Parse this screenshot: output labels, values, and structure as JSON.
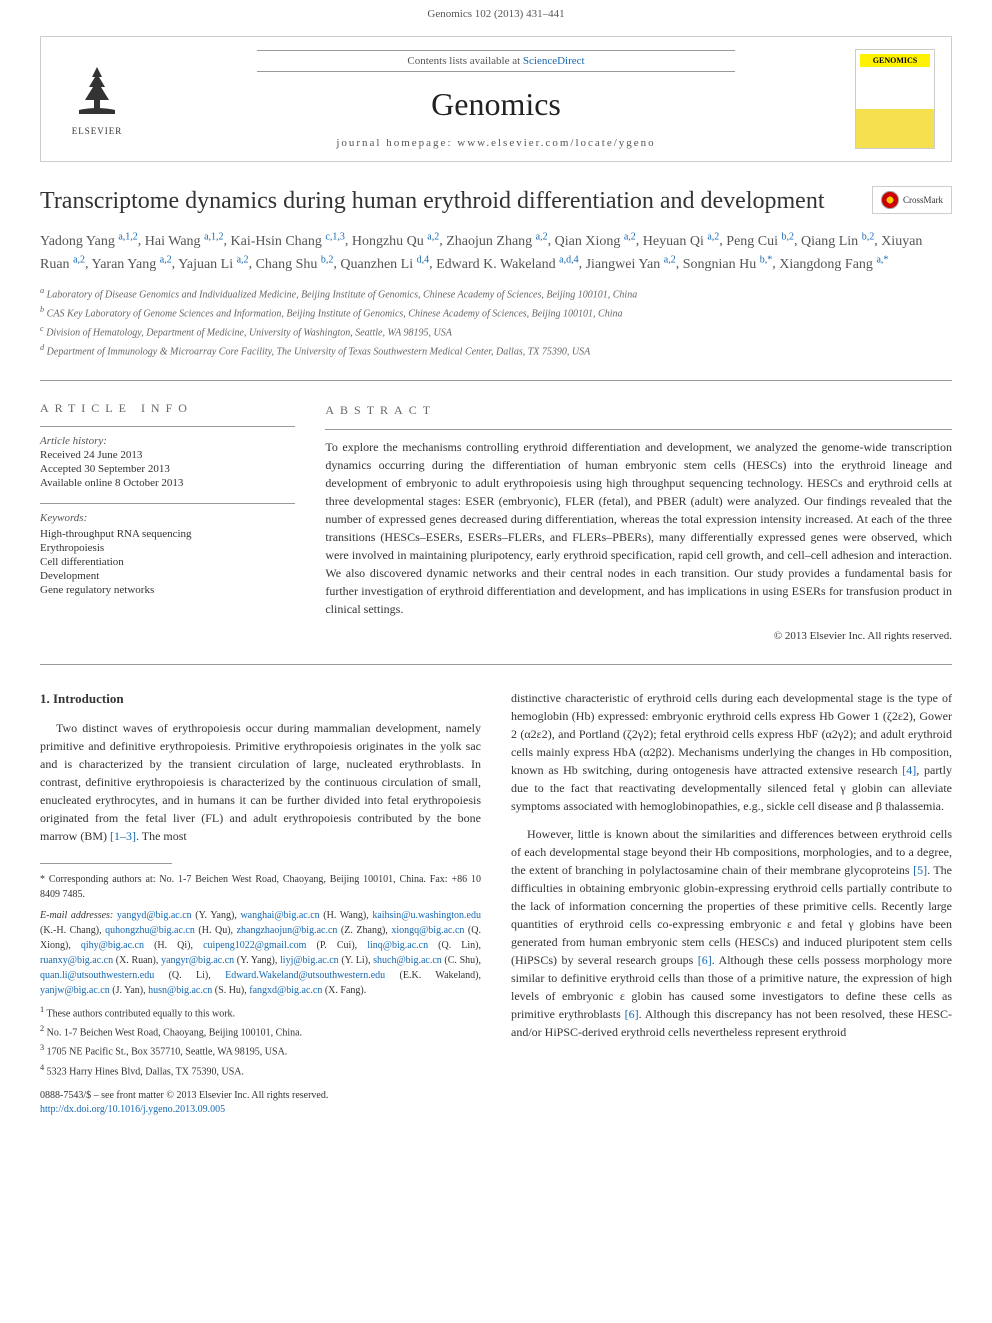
{
  "header": {
    "citation": "Genomics 102 (2013) 431–441"
  },
  "journalBox": {
    "contentsLabel": "Contents lists available at ",
    "contentsLink": "ScienceDirect",
    "journalName": "Genomics",
    "homepageLabel": "journal homepage: ",
    "homepage": "www.elsevier.com/locate/ygeno",
    "publisher": "ELSEVIER",
    "coverTitle": "GENOMICS"
  },
  "crossmark": "CrossMark",
  "title": "Transcriptome dynamics during human erythroid differentiation and development",
  "authors": [
    {
      "name": "Yadong Yang",
      "sup": "a,1,2"
    },
    {
      "name": "Hai Wang",
      "sup": "a,1,2"
    },
    {
      "name": "Kai-Hsin Chang",
      "sup": "c,1,3"
    },
    {
      "name": "Hongzhu Qu",
      "sup": "a,2"
    },
    {
      "name": "Zhaojun Zhang",
      "sup": "a,2"
    },
    {
      "name": "Qian Xiong",
      "sup": "a,2"
    },
    {
      "name": "Heyuan Qi",
      "sup": "a,2"
    },
    {
      "name": "Peng Cui",
      "sup": "b,2"
    },
    {
      "name": "Qiang Lin",
      "sup": "b,2"
    },
    {
      "name": "Xiuyan Ruan",
      "sup": "a,2"
    },
    {
      "name": "Yaran Yang",
      "sup": "a,2"
    },
    {
      "name": "Yajuan Li",
      "sup": "a,2"
    },
    {
      "name": "Chang Shu",
      "sup": "b,2"
    },
    {
      "name": "Quanzhen Li",
      "sup": "d,4"
    },
    {
      "name": "Edward K. Wakeland",
      "sup": "a,d,4"
    },
    {
      "name": "Jiangwei Yan",
      "sup": "a,2"
    },
    {
      "name": "Songnian Hu",
      "sup": "b,*"
    },
    {
      "name": "Xiangdong Fang",
      "sup": "a,*"
    }
  ],
  "affiliations": [
    {
      "label": "a",
      "text": "Laboratory of Disease Genomics and Individualized Medicine, Beijing Institute of Genomics, Chinese Academy of Sciences, Beijing 100101, China"
    },
    {
      "label": "b",
      "text": "CAS Key Laboratory of Genome Sciences and Information, Beijing Institute of Genomics, Chinese Academy of Sciences, Beijing 100101, China"
    },
    {
      "label": "c",
      "text": "Division of Hematology, Department of Medicine, University of Washington, Seattle, WA 98195, USA"
    },
    {
      "label": "d",
      "text": "Department of Immunology & Microarray Core Facility, The University of Texas Southwestern Medical Center, Dallas, TX 75390, USA"
    }
  ],
  "articleInfo": {
    "label": "ARTICLE INFO",
    "historyLabel": "Article history:",
    "history": [
      "Received 24 June 2013",
      "Accepted 30 September 2013",
      "Available online 8 October 2013"
    ],
    "keywordsLabel": "Keywords:",
    "keywords": [
      "High-throughput RNA sequencing",
      "Erythropoiesis",
      "Cell differentiation",
      "Development",
      "Gene regulatory networks"
    ]
  },
  "abstract": {
    "label": "ABSTRACT",
    "text": "To explore the mechanisms controlling erythroid differentiation and development, we analyzed the genome-wide transcription dynamics occurring during the differentiation of human embryonic stem cells (HESCs) into the erythroid lineage and development of embryonic to adult erythropoiesis using high throughput sequencing technology. HESCs and erythroid cells at three developmental stages: ESER (embryonic), FLER (fetal), and PBER (adult) were analyzed. Our findings revealed that the number of expressed genes decreased during differentiation, whereas the total expression intensity increased. At each of the three transitions (HESCs–ESERs, ESERs–FLERs, and FLERs–PBERs), many differentially expressed genes were observed, which were involved in maintaining pluripotency, early erythroid specification, rapid cell growth, and cell–cell adhesion and interaction. We also discovered dynamic networks and their central nodes in each transition. Our study provides a fundamental basis for further investigation of erythroid differentiation and development, and has implications in using ESERs for transfusion product in clinical settings.",
    "copyright": "© 2013 Elsevier Inc. All rights reserved."
  },
  "intro": {
    "heading": "1. Introduction",
    "p1": "Two distinct waves of erythropoiesis occur during mammalian development, namely primitive and definitive erythropoiesis. Primitive erythropoiesis originates in the yolk sac and is characterized by the transient circulation of large, nucleated erythroblasts. In contrast, definitive erythropoiesis is characterized by the continuous circulation of small, enucleated erythrocytes, and in humans it can be further divided into fetal erythropoiesis originated from the fetal liver (FL) and adult erythropoiesis contributed by the bone marrow (BM) ",
    "p1ref": "[1–3]",
    "p1tail": ". The most",
    "p2a": "distinctive characteristic of erythroid cells during each developmental stage is the type of hemoglobin (Hb) expressed: embryonic erythroid cells express Hb Gower 1 (ζ2ε2), Gower 2 (α2ε2), and Portland (ζ2γ2); fetal erythroid cells express HbF (α2γ2); and adult erythroid cells mainly express HbA (α2β2). Mechanisms underlying the changes in Hb composition, known as Hb switching, during ontogenesis have attracted extensive research ",
    "p2ref": "[4]",
    "p2b": ", partly due to the fact that reactivating developmentally silenced fetal γ globin can alleviate symptoms associated with hemoglobinopathies, e.g., sickle cell disease and β thalassemia.",
    "p3a": "However, little is known about the similarities and differences between erythroid cells of each developmental stage beyond their Hb compositions, morphologies, and to a degree, the extent of branching in polylactosamine chain of their membrane glycoproteins ",
    "p3ref1": "[5]",
    "p3b": ". The difficulties in obtaining embryonic globin-expressing erythroid cells partially contribute to the lack of information concerning the properties of these primitive cells. Recently large quantities of erythroid cells co-expressing embryonic ε and fetal γ globins have been generated from human embryonic stem cells (HESCs) and induced pluripotent stem cells (HiPSCs) by several research groups ",
    "p3ref2": "[6]",
    "p3c": ". Although these cells possess morphology more similar to definitive erythroid cells than those of a primitive nature, the expression of high levels of embryonic ε globin has caused some investigators to define these cells as primitive erythroblasts ",
    "p3ref3": "[6]",
    "p3d": ". Although this discrepancy has not been resolved, these HESC- and/or HiPSC-derived erythroid cells nevertheless represent erythroid"
  },
  "footnotes": {
    "corrStar": "*",
    "corrText": "Corresponding authors at: No. 1-7 Beichen West Road, Chaoyang, Beijing 100101, China. Fax: +86 10 8409 7485.",
    "emailLabel": "E-mail addresses:",
    "emails": [
      {
        "email": "yangyd@big.ac.cn",
        "name": "(Y. Yang)"
      },
      {
        "email": "wanghai@big.ac.cn",
        "name": "(H. Wang)"
      },
      {
        "email": "kaihsin@u.washington.edu",
        "name": "(K.-H. Chang)"
      },
      {
        "email": "quhongzhu@big.ac.cn",
        "name": "(H. Qu)"
      },
      {
        "email": "zhangzhaojun@big.ac.cn",
        "name": "(Z. Zhang)"
      },
      {
        "email": "xiongq@big.ac.cn",
        "name": "(Q. Xiong)"
      },
      {
        "email": "qihy@big.ac.cn",
        "name": "(H. Qi)"
      },
      {
        "email": "cuipeng1022@gmail.com",
        "name": "(P. Cui)"
      },
      {
        "email": "linq@big.ac.cn",
        "name": "(Q. Lin)"
      },
      {
        "email": "ruanxy@big.ac.cn",
        "name": "(X. Ruan)"
      },
      {
        "email": "yangyr@big.ac.cn",
        "name": "(Y. Yang)"
      },
      {
        "email": "liyj@big.ac.cn",
        "name": "(Y. Li)"
      },
      {
        "email": "shuch@big.ac.cn",
        "name": "(C. Shu)"
      },
      {
        "email": "quan.li@utsouthwestern.edu",
        "name": "(Q. Li)"
      },
      {
        "email": "Edward.Wakeland@utsouthwestern.edu",
        "name": "(E.K. Wakeland)"
      },
      {
        "email": "yanjw@big.ac.cn",
        "name": "(J. Yan)"
      },
      {
        "email": "husn@big.ac.cn",
        "name": "(S. Hu)"
      },
      {
        "email": "fangxd@big.ac.cn",
        "name": "(X. Fang)"
      }
    ],
    "notes": [
      {
        "num": "1",
        "text": "These authors contributed equally to this work."
      },
      {
        "num": "2",
        "text": "No. 1-7 Beichen West Road, Chaoyang, Beijing 100101, China."
      },
      {
        "num": "3",
        "text": "1705 NE Pacific St., Box 357710, Seattle, WA 98195, USA."
      },
      {
        "num": "4",
        "text": "5323 Harry Hines Blvd, Dallas, TX 75390, USA."
      }
    ]
  },
  "doi": {
    "issn": "0888-7543/$ – see front matter © 2013 Elsevier Inc. All rights reserved.",
    "link": "http://dx.doi.org/10.1016/j.ygeno.2013.09.005"
  },
  "colors": {
    "link": "#1768b0",
    "text": "#333333",
    "muted": "#666666"
  }
}
